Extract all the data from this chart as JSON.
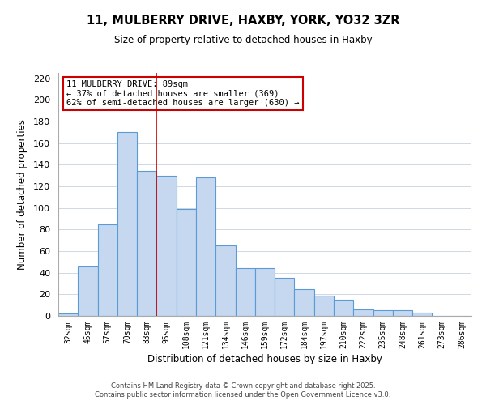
{
  "title": "11, MULBERRY DRIVE, HAXBY, YORK, YO32 3ZR",
  "subtitle": "Size of property relative to detached houses in Haxby",
  "xlabel": "Distribution of detached houses by size in Haxby",
  "ylabel": "Number of detached properties",
  "categories": [
    "32sqm",
    "45sqm",
    "57sqm",
    "70sqm",
    "83sqm",
    "95sqm",
    "108sqm",
    "121sqm",
    "134sqm",
    "146sqm",
    "159sqm",
    "172sqm",
    "184sqm",
    "197sqm",
    "210sqm",
    "222sqm",
    "235sqm",
    "248sqm",
    "261sqm",
    "273sqm",
    "286sqm"
  ],
  "values": [
    2,
    46,
    85,
    170,
    134,
    130,
    99,
    128,
    65,
    44,
    44,
    35,
    25,
    19,
    15,
    6,
    5,
    5,
    3,
    0,
    0
  ],
  "bar_color": "#c5d8f0",
  "bar_edge_color": "#5b9bd5",
  "background_color": "#ffffff",
  "grid_color": "#d0d8e4",
  "vline_color": "#cc0000",
  "vline_x": 4.5,
  "annotation_text": "11 MULBERRY DRIVE: 89sqm\n← 37% of detached houses are smaller (369)\n62% of semi-detached houses are larger (630) →",
  "annotation_box_color": "#ffffff",
  "annotation_box_edge": "#cc0000",
  "ylim": [
    0,
    225
  ],
  "yticks": [
    0,
    20,
    40,
    60,
    80,
    100,
    120,
    140,
    160,
    180,
    200,
    220
  ],
  "footer1": "Contains HM Land Registry data © Crown copyright and database right 2025.",
  "footer2": "Contains public sector information licensed under the Open Government Licence v3.0."
}
